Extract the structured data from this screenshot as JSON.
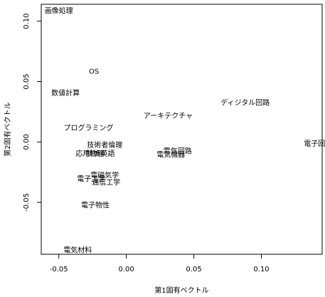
{
  "chart_data": {
    "type": "scatter",
    "title": "",
    "xlabel": "第1固有ベクトル",
    "ylabel": "第2固有ベクトル",
    "xlim": [
      -0.063,
      0.145
    ],
    "ylim": [
      -0.093,
      0.114
    ],
    "x_ticks": [
      -0.05,
      0.0,
      0.05,
      0.1
    ],
    "x_tick_labels": [
      "-0.05",
      "0.00",
      "0.05",
      "0.10"
    ],
    "y_ticks": [
      -0.05,
      0.0,
      0.05,
      0.1
    ],
    "y_tick_labels": [
      "-0.05",
      "0.00",
      "0.05",
      "0.10"
    ],
    "grid": false,
    "marker": "text-label",
    "points": [
      {
        "label": "画像処理",
        "x": -0.05,
        "y": 0.108
      },
      {
        "label": "OS",
        "x": -0.024,
        "y": 0.058
      },
      {
        "label": "数値計算",
        "x": -0.045,
        "y": 0.04
      },
      {
        "label": "プログラミング",
        "x": -0.028,
        "y": 0.011
      },
      {
        "label": "技術者倫理",
        "x": -0.016,
        "y": -0.003
      },
      {
        "label": "応用物理",
        "x": -0.027,
        "y": -0.01
      },
      {
        "label": "技術英語",
        "x": -0.019,
        "y": -0.01
      },
      {
        "label": "電磁気学",
        "x": -0.016,
        "y": -0.028
      },
      {
        "label": "電子工学",
        "x": -0.026,
        "y": -0.031
      },
      {
        "label": "通信工学",
        "x": -0.015,
        "y": -0.034
      },
      {
        "label": "電子物性",
        "x": -0.023,
        "y": -0.053
      },
      {
        "label": "電気材料",
        "x": -0.036,
        "y": -0.09
      },
      {
        "label": "アーキテクチャ",
        "x": 0.031,
        "y": 0.021
      },
      {
        "label": "電気回路",
        "x": 0.038,
        "y": -0.008
      },
      {
        "label": "電気機器",
        "x": 0.033,
        "y": -0.011
      },
      {
        "label": "ディジタル回路",
        "x": 0.088,
        "y": 0.032
      },
      {
        "label": "電子回路",
        "x": 0.142,
        "y": -0.002
      }
    ]
  }
}
